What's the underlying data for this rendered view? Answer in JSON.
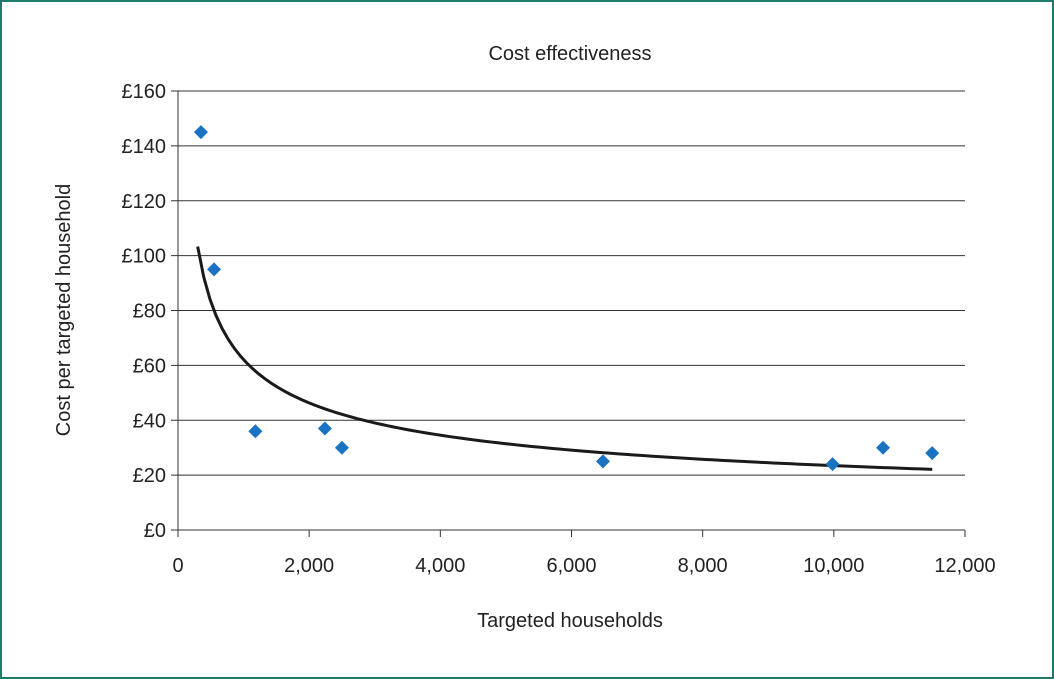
{
  "chart_data": {
    "type": "scatter",
    "title": "Cost effectiveness",
    "xlabel": "Targeted households",
    "ylabel": "Cost per targeted household",
    "xlim": [
      0,
      12000
    ],
    "ylim": [
      0,
      160
    ],
    "x_ticks": [
      {
        "value": 0,
        "label": "0"
      },
      {
        "value": 2000,
        "label": "2,000"
      },
      {
        "value": 4000,
        "label": "4,000"
      },
      {
        "value": 6000,
        "label": "6,000"
      },
      {
        "value": 8000,
        "label": "8,000"
      },
      {
        "value": 10000,
        "label": "10,000"
      },
      {
        "value": 12000,
        "label": "12,000"
      }
    ],
    "y_ticks": [
      {
        "value": 0,
        "label": "£0"
      },
      {
        "value": 20,
        "label": "£20"
      },
      {
        "value": 40,
        "label": "£40"
      },
      {
        "value": 60,
        "label": "£60"
      },
      {
        "value": 80,
        "label": "£80"
      },
      {
        "value": 100,
        "label": "£100"
      },
      {
        "value": 120,
        "label": "£120"
      },
      {
        "value": 140,
        "label": "£140"
      },
      {
        "value": 160,
        "label": "£160"
      }
    ],
    "grid": "horizontal",
    "series": [
      {
        "points": [
          {
            "x": 350,
            "y": 145
          },
          {
            "x": 550,
            "y": 95
          },
          {
            "x": 1180,
            "y": 36
          },
          {
            "x": 2240,
            "y": 37
          },
          {
            "x": 2500,
            "y": 30
          },
          {
            "x": 6480,
            "y": 25
          },
          {
            "x": 9980,
            "y": 24
          },
          {
            "x": 10750,
            "y": 30
          },
          {
            "x": 11500,
            "y": 28
          }
        ],
        "color": "#1a73c2",
        "marker": "diamond"
      }
    ],
    "trendline": {
      "type": "power",
      "x_range": [
        300,
        11500
      ],
      "color": "#1a1a1a"
    }
  }
}
